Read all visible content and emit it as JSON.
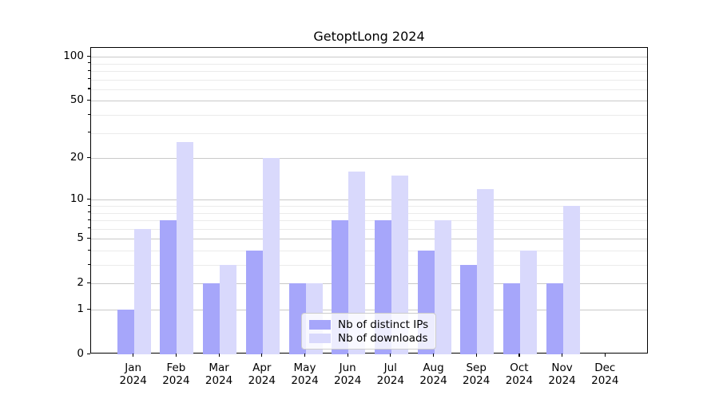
{
  "title": "GetoptLong 2024",
  "chart_data": {
    "type": "bar",
    "title": "GetoptLong 2024",
    "categories": [
      {
        "month": "Jan",
        "year": "2024"
      },
      {
        "month": "Feb",
        "year": "2024"
      },
      {
        "month": "Mar",
        "year": "2024"
      },
      {
        "month": "Apr",
        "year": "2024"
      },
      {
        "month": "May",
        "year": "2024"
      },
      {
        "month": "Jun",
        "year": "2024"
      },
      {
        "month": "Jul",
        "year": "2024"
      },
      {
        "month": "Aug",
        "year": "2024"
      },
      {
        "month": "Sep",
        "year": "2024"
      },
      {
        "month": "Oct",
        "year": "2024"
      },
      {
        "month": "Nov",
        "year": "2024"
      },
      {
        "month": "Dec",
        "year": "2024"
      }
    ],
    "series": [
      {
        "name": "Nb of distinct IPs",
        "color": "#a6a6fa",
        "values": [
          1,
          7,
          2,
          4,
          2,
          7,
          7,
          4,
          3,
          2,
          2,
          0
        ]
      },
      {
        "name": "Nb of downloads",
        "color": "#d9d9fc",
        "values": [
          6,
          26,
          3,
          20,
          2,
          16,
          15,
          7,
          12,
          4,
          9,
          0
        ]
      }
    ],
    "xlabel": "",
    "ylabel": "",
    "yscale": "log1p",
    "ylim": [
      0,
      115
    ],
    "yticks": [
      0,
      1,
      2,
      5,
      10,
      20,
      50,
      100
    ],
    "minor_yticks": [
      3,
      4,
      6,
      7,
      8,
      9,
      30,
      40,
      60,
      70,
      80,
      90
    ],
    "grid": true,
    "legend_position": "lower center"
  },
  "style": {
    "grid_major_color": "#c9c9c9",
    "grid_minor_color": "#ebebeb",
    "axis_color": "#000000",
    "legend_border_color": "#cccccc",
    "legend_bg": "rgba(255,255,255,0.8)"
  }
}
